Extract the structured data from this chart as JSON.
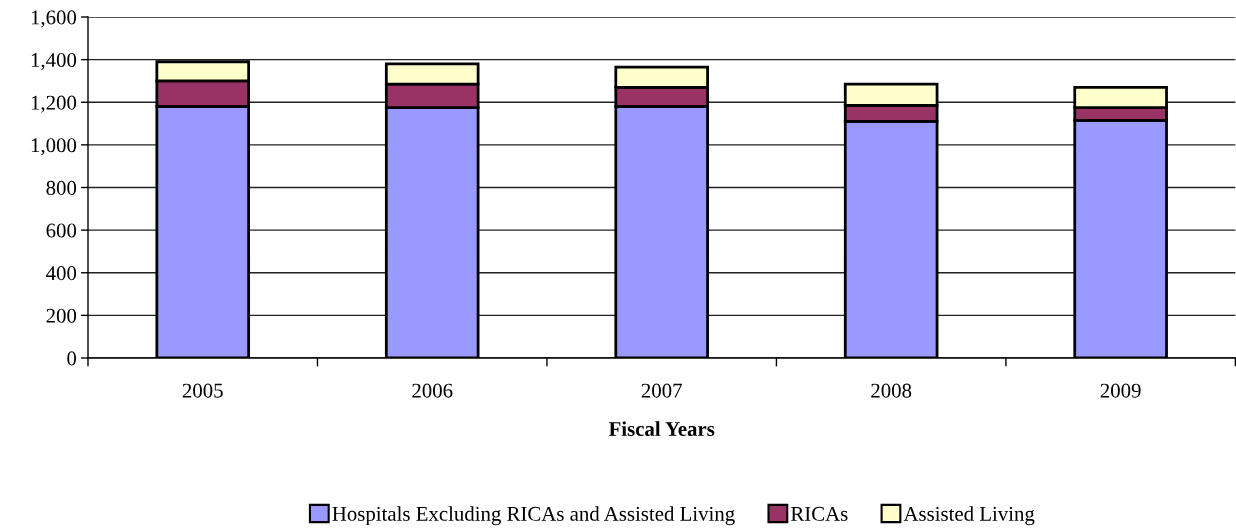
{
  "chart_data": {
    "type": "bar",
    "xlabel": "Fiscal Years",
    "categories": [
      "2005",
      "2006",
      "2007",
      "2008",
      "2009"
    ],
    "series": [
      {
        "name": "Hospitals Excluding RICAs and Assisted Living",
        "color": "#9999ff",
        "values": [
          1180,
          1175,
          1180,
          1110,
          1115
        ]
      },
      {
        "name": "RICAs",
        "color": "#993366",
        "values": [
          120,
          110,
          90,
          75,
          60
        ]
      },
      {
        "name": "Assisted Living",
        "color": "#ffffcc",
        "values": [
          90,
          95,
          95,
          100,
          95
        ]
      }
    ],
    "stacked": true,
    "ylim": [
      0,
      1600
    ],
    "yticks": [
      0,
      {
        "value": 200,
        "label": "200"
      },
      {
        "value": 400,
        "label": "400"
      },
      {
        "value": 600,
        "label": "600"
      },
      {
        "value": 800,
        "label": "800"
      },
      {
        "value": 1000,
        "label": "1,000"
      },
      {
        "value": 1200,
        "label": "1,200"
      },
      {
        "value": 1400,
        "label": "1,400"
      },
      {
        "value": 1600,
        "label": "1,600"
      }
    ],
    "grid": "y",
    "legend": "bottom"
  }
}
